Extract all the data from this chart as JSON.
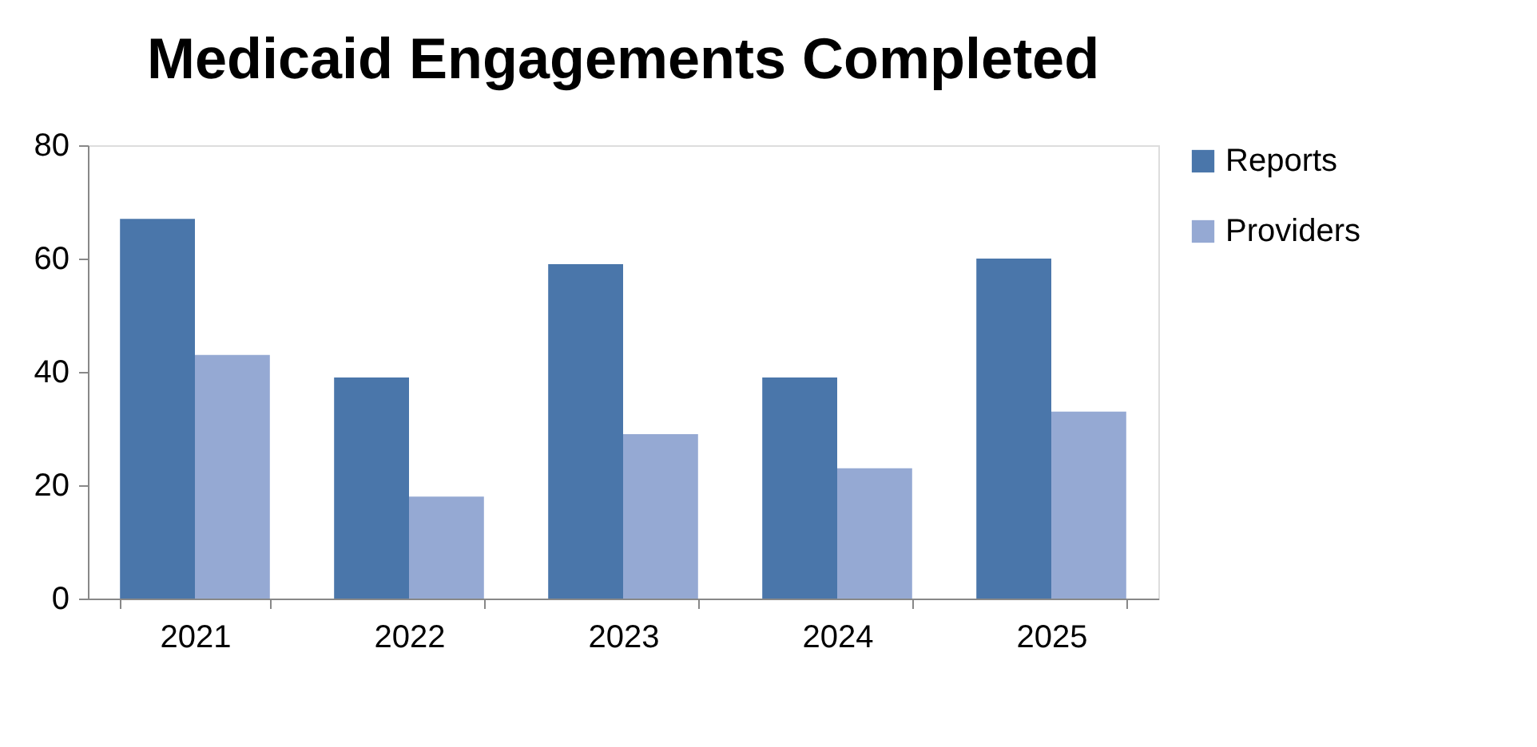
{
  "chart_data": {
    "type": "bar",
    "title": "Medicaid Engagements Completed",
    "categories": [
      "2021",
      "2022",
      "2023",
      "2024",
      "2025"
    ],
    "series": [
      {
        "name": "Reports",
        "color": "#4a76aa",
        "values": [
          67,
          39,
          59,
          39,
          60
        ]
      },
      {
        "name": "Providers",
        "color": "#95a9d3",
        "values": [
          43,
          18,
          29,
          23,
          33
        ]
      }
    ],
    "ylim": [
      0,
      80
    ],
    "yticks": [
      0,
      20,
      40,
      60,
      80
    ],
    "grid": false,
    "legend": "right"
  }
}
